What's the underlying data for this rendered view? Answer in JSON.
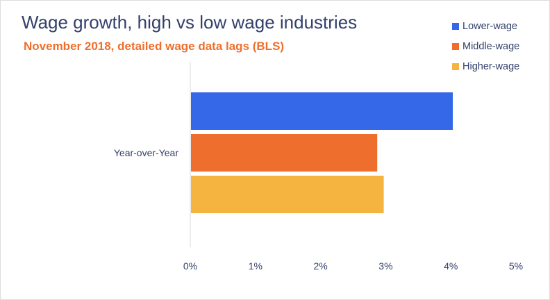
{
  "chart_data": {
    "type": "bar",
    "orientation": "horizontal",
    "title": "Wage growth, high vs low wage industries",
    "subtitle": "November 2018, detailed wage data lags (BLS)",
    "categories": [
      "Year-over-Year"
    ],
    "series": [
      {
        "name": "Lower-wage",
        "values": [
          4.03
        ],
        "color": "#3468e8"
      },
      {
        "name": "Middle-wage",
        "values": [
          2.87
        ],
        "color": "#ee6f2d"
      },
      {
        "name": "Higher-wage",
        "values": [
          2.97
        ],
        "color": "#f5b340"
      }
    ],
    "xlim": [
      0,
      5
    ],
    "xticks": [
      "0%",
      "1%",
      "2%",
      "3%",
      "4%",
      "5%"
    ],
    "xlabel": "",
    "ylabel": "",
    "grid": false,
    "legend_position": "top-right"
  }
}
